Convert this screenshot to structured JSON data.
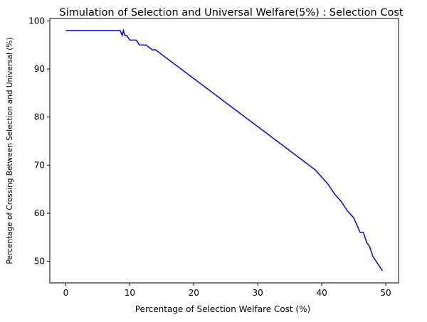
{
  "chart_data": {
    "type": "line",
    "title": "Simulation of Selection and Universal Welfare(5%) : Selection Cost",
    "xlabel": "Percentage of Selection Welfare Cost (%)",
    "ylabel": "Percentage of Crossing Between Selection and Universal (%)",
    "xlim": [
      -2.5,
      52.0
    ],
    "ylim": [
      45.5,
      100.5
    ],
    "xticks": [
      0,
      10,
      20,
      30,
      40,
      50
    ],
    "yticks": [
      50,
      60,
      70,
      80,
      90,
      100
    ],
    "xtick_labels": [
      "0",
      "10",
      "20",
      "30",
      "40",
      "50"
    ],
    "ytick_labels": [
      "50",
      "60",
      "70",
      "80",
      "90",
      "100"
    ],
    "grid": false,
    "line_color": "#0000ff",
    "series": [
      {
        "x": [
          0,
          8.5,
          8.8,
          9.0,
          9.2,
          9.5,
          10,
          11,
          11.5,
          12.5,
          13.5,
          14,
          15,
          16,
          17,
          18,
          19,
          20,
          21,
          22,
          23,
          24,
          25,
          26,
          27,
          28,
          29,
          30,
          31,
          32,
          33,
          34,
          35,
          36,
          37,
          38,
          39,
          40,
          41,
          42,
          43,
          44,
          45,
          46,
          46.5,
          47,
          47.5,
          48,
          48.5,
          49,
          49.5
        ],
        "y": [
          98,
          98,
          97,
          98,
          97,
          97,
          96,
          96,
          95,
          95,
          94,
          94,
          93,
          92,
          91,
          90,
          89,
          88,
          87,
          86,
          85,
          84,
          83,
          82,
          81,
          80,
          79,
          78,
          77,
          76,
          75,
          74,
          73,
          72,
          71,
          70,
          69,
          67.5,
          66,
          64,
          62.5,
          60.5,
          59,
          56,
          56,
          54,
          53,
          51,
          50,
          49,
          48
        ]
      }
    ]
  }
}
